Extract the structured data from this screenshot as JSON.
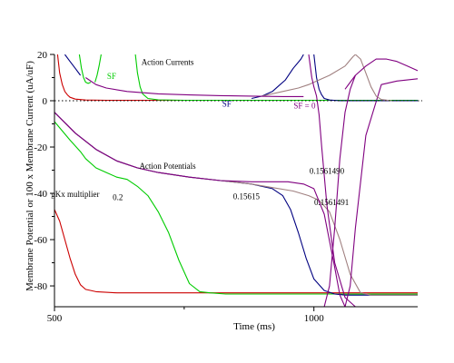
{
  "chart_data": {
    "type": "line",
    "title": "",
    "xlabel": "Time (ms)",
    "ylabel": "Membrane Potential or 100 x Membrane Current (uA/uF)",
    "xlim": [
      500,
      1200
    ],
    "ylim": [
      -89,
      20
    ],
    "x_ticks": [
      500,
      1000
    ],
    "y_ticks": [
      20,
      0,
      -20,
      -40,
      -60,
      -80
    ],
    "grid": false,
    "reference_lines": [
      {
        "y": 0,
        "style": "dotted"
      }
    ],
    "annotations": [
      {
        "text": "Action Currents",
        "x": 718,
        "y": 15.5,
        "color": "#000000"
      },
      {
        "text": "Action Potentials",
        "x": 718,
        "y": -29.5,
        "color": "#000000"
      },
      {
        "text": "SF",
        "x": 610,
        "y": 9.5,
        "color": "#00cc00"
      },
      {
        "text": "SF",
        "x": 832,
        "y": -2.5,
        "color": "#000080"
      },
      {
        "text": "SF = 0",
        "x": 982,
        "y": -3.3,
        "color": "#800080"
      },
      {
        "text": "0.1561490",
        "x": 1025,
        "y": -31.5,
        "color": "#000000"
      },
      {
        "text": "0.15615",
        "x": 870,
        "y": -42.5,
        "color": "#000000"
      },
      {
        "text": "0.1561491",
        "x": 1034,
        "y": -45,
        "color": "#000000"
      },
      {
        "text": "gKx multiplier",
        "x": 540,
        "y": -41.5,
        "color": "#000000"
      },
      {
        "text": "0.2",
        "x": 622,
        "y": -43,
        "color": "#000000"
      }
    ],
    "series": [
      {
        "color": "#cc0000",
        "x": [
          500,
          510,
          520,
          530,
          540,
          550,
          560,
          580,
          620,
          700,
          800,
          1000,
          1200
        ],
        "y": [
          -47,
          -52,
          -60,
          -68,
          -75,
          -79.5,
          -81.5,
          -82.5,
          -83,
          -83,
          -83,
          -83,
          -83
        ]
      },
      {
        "color": "#00cc00",
        "x": [
          500,
          530,
          550,
          560,
          580,
          600,
          620,
          640,
          660,
          680,
          700,
          720,
          740,
          760,
          780,
          800,
          830,
          850,
          900,
          1000,
          1200
        ],
        "y": [
          -9,
          -17,
          -22,
          -25,
          -29,
          -31,
          -33,
          -34,
          -37,
          -41,
          -48,
          -57,
          -69,
          -79,
          -82.5,
          -83,
          -83.5,
          -83.5,
          -83.5,
          -83.5,
          -83.5
        ]
      },
      {
        "color": "#000080",
        "x": [
          500,
          540,
          580,
          620,
          660,
          700,
          760,
          820,
          880,
          920,
          940,
          955,
          970,
          985,
          1000,
          1020,
          1040,
          1060,
          1100,
          1200
        ],
        "y": [
          -5,
          -14,
          -21,
          -26,
          -29,
          -31,
          -33,
          -34.5,
          -36,
          -38,
          -41,
          -47,
          -57,
          -68,
          -77,
          -82,
          -83.5,
          -84,
          -84,
          -84
        ]
      },
      {
        "color": "#a08080",
        "x": [
          500,
          540,
          580,
          620,
          660,
          700,
          760,
          820,
          880,
          920,
          960,
          990,
          1010,
          1030,
          1050,
          1070,
          1090,
          1110,
          1140,
          1200
        ],
        "y": [
          -5,
          -14,
          -21,
          -26,
          -29,
          -31,
          -33,
          -34.5,
          -36,
          -37.5,
          -39,
          -41,
          -43,
          -48,
          -60,
          -75,
          -83,
          -84,
          -84,
          -84
        ]
      },
      {
        "color": "#800080",
        "x": [
          500,
          540,
          580,
          620,
          660,
          700,
          760,
          820,
          880,
          920,
          950,
          980,
          1000,
          1020,
          1040,
          1050,
          1060,
          1070,
          1080,
          1100,
          1130,
          1160,
          1200
        ],
        "y": [
          -5,
          -14,
          -21,
          -26,
          -29,
          -31,
          -33,
          -34.5,
          -35,
          -35,
          -35,
          -36,
          -38,
          -49,
          -72,
          -84,
          -89,
          -80,
          -55,
          -15,
          7,
          8.5,
          9.5
        ]
      }
    ],
    "current_series": [
      {
        "color": "#cc0000",
        "segments": [
          {
            "x": [
              506,
              510,
              515,
              520,
              525,
              530,
              540,
              560,
              600,
              700,
              900,
              1200
            ],
            "y": [
              20,
              12,
              7,
              4,
              2.5,
              1.5,
              0.7,
              0.3,
              0.2,
              0.2,
              0.2,
              0.2
            ]
          }
        ]
      },
      {
        "color": "#00cc00",
        "segments": [
          {
            "x": [
              548,
              552,
              556,
              560,
              565,
              570
            ],
            "y": [
              20,
              14,
              10,
              8,
              7.5,
              8
            ]
          },
          {
            "x": [
              578,
              582,
              586,
              590
            ],
            "y": [
              8,
              11,
              15,
              20
            ]
          },
          {
            "x": [
              656,
              660,
              665,
              670,
              680,
              700,
              750,
              850,
              1000,
              1200
            ],
            "y": [
              20,
              12,
              6,
              3,
              1,
              0.4,
              0.2,
              0.2,
              0.2,
              0.2
            ]
          }
        ]
      },
      {
        "color": "#000080",
        "segments": [
          {
            "x": [
              520,
              530,
              540,
              550
            ],
            "y": [
              20,
              17,
              14,
              11
            ]
          },
          {
            "x": [
              880,
              900,
              920,
              930,
              945,
              960,
              975,
              980
            ],
            "y": [
              1,
              2,
              4,
              6,
              9,
              14,
              18,
              20
            ]
          },
          {
            "x": [
              1000,
              1005,
              1010,
              1015,
              1020,
              1030,
              1050,
              1080,
              1120,
              1200
            ],
            "y": [
              20,
              10,
              5,
              2.5,
              1,
              0.3,
              0,
              0,
              0,
              0
            ]
          }
        ]
      },
      {
        "color": "#a08080",
        "segments": [
          {
            "x": [
              900,
              940,
              970,
              990,
              1000
            ],
            "y": [
              2,
              4,
              5.5,
              7,
              8
            ]
          },
          {
            "x": [
              1000,
              1030,
              1060,
              1075,
              1080,
              1090,
              1100,
              1110,
              1120,
              1130,
              1150
            ],
            "y": [
              8,
              11,
              15,
              19,
              20,
              18,
              12,
              6,
              2,
              0.5,
              0
            ]
          }
        ]
      },
      {
        "color": "#800080",
        "segments": [
          {
            "x": [
              560,
              580,
              600,
              640,
              700,
              760,
              820,
              880,
              940,
              980
            ],
            "y": [
              10,
              7,
              5.5,
              4,
              3,
              2.5,
              2.2,
              2,
              1.8,
              1.8
            ]
          },
          {
            "x": [
              990,
              993,
              996,
              1000,
              1005,
              1010,
              1015,
              1025,
              1040,
              1060,
              1080
            ],
            "y": [
              20,
              15,
              10,
              6,
              2,
              -6,
              -20,
              -45,
              -70,
              -85,
              -89
            ]
          },
          {
            "x": [
              1020,
              1030,
              1040,
              1050,
              1060,
              1070,
              1080
            ],
            "y": [
              -89,
              -80,
              -55,
              -25,
              -5,
              5,
              11
            ]
          },
          {
            "x": [
              1060,
              1080,
              1100,
              1120,
              1140,
              1160,
              1180,
              1200
            ],
            "y": [
              5,
              11,
              15,
              18,
              18,
              17,
              15,
              13
            ]
          }
        ]
      }
    ]
  }
}
